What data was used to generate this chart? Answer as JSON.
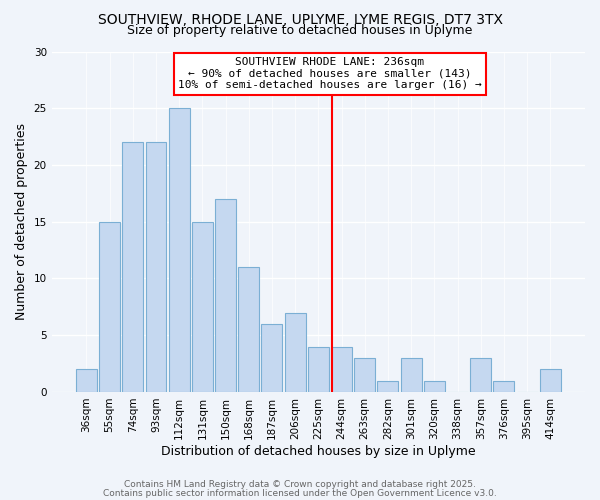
{
  "title1": "SOUTHVIEW, RHODE LANE, UPLYME, LYME REGIS, DT7 3TX",
  "title2": "Size of property relative to detached houses in Uplyme",
  "xlabel": "Distribution of detached houses by size in Uplyme",
  "ylabel": "Number of detached properties",
  "categories": [
    "36sqm",
    "55sqm",
    "74sqm",
    "93sqm",
    "112sqm",
    "131sqm",
    "150sqm",
    "168sqm",
    "187sqm",
    "206sqm",
    "225sqm",
    "244sqm",
    "263sqm",
    "282sqm",
    "301sqm",
    "320sqm",
    "338sqm",
    "357sqm",
    "376sqm",
    "395sqm",
    "414sqm"
  ],
  "values": [
    2,
    15,
    22,
    22,
    25,
    15,
    17,
    11,
    6,
    7,
    4,
    4,
    3,
    1,
    3,
    1,
    0,
    3,
    1,
    0,
    2
  ],
  "bar_color": "#c5d8f0",
  "bar_edge_color": "#7bafd4",
  "vertical_line_x": 10.58,
  "annotation_line1": "SOUTHVIEW RHODE LANE: 236sqm",
  "annotation_line2": "← 90% of detached houses are smaller (143)",
  "annotation_line3": "10% of semi-detached houses are larger (16) →",
  "ylim": [
    0,
    30
  ],
  "yticks": [
    0,
    5,
    10,
    15,
    20,
    25,
    30
  ],
  "footer1": "Contains HM Land Registry data © Crown copyright and database right 2025.",
  "footer2": "Contains public sector information licensed under the Open Government Licence v3.0.",
  "background_color": "#f0f4fa",
  "grid_color": "#ffffff",
  "title1_fontsize": 10,
  "title2_fontsize": 9,
  "axis_label_fontsize": 9,
  "tick_fontsize": 7.5,
  "footer_fontsize": 6.5,
  "annotation_fontsize": 8
}
